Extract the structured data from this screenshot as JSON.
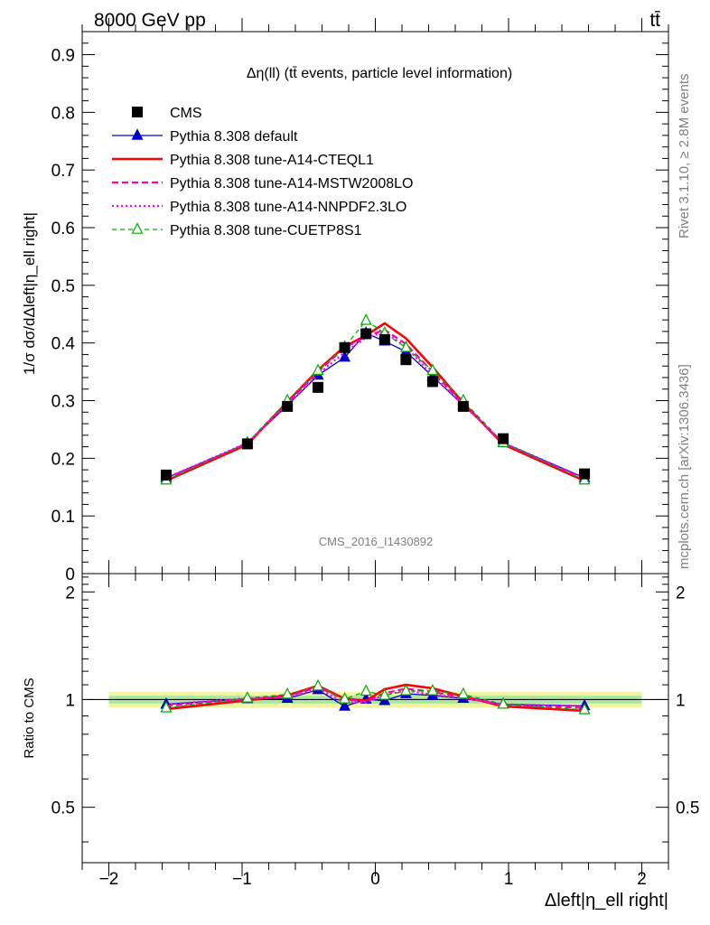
{
  "header": {
    "energy_label": "8000 GeV pp",
    "process_label": "tt̄"
  },
  "side_labels": {
    "rivet": "Rivet 3.1.10, ≥ 2.8M events",
    "source": "mcplots.cern.ch [arXiv:1306.3436]"
  },
  "chart_data": [
    {
      "type": "line",
      "title": "Δη(ll) (tt̄ events, particle level information)",
      "watermark": "CMS_2016_I1430892",
      "xlabel": "Δleft|η_ell right|",
      "ylabel": "1/σ dσ/dΔleft|η_ell right|",
      "xlim": [
        -2.2,
        2.2
      ],
      "ylim": [
        0,
        0.94
      ],
      "y_ticks": [
        0,
        0.1,
        0.2,
        0.3,
        0.4,
        0.5,
        0.6,
        0.7,
        0.8,
        0.9
      ],
      "y_tick_labels": [
        "0",
        "0.1",
        "0.2",
        "0.3",
        "0.4",
        "0.5",
        "0.6",
        "0.7",
        "0.8",
        "0.9"
      ],
      "x_ticks": [
        -2,
        -1,
        0,
        1,
        2
      ],
      "x_tick_labels": [
        "−2",
        "−1",
        "0",
        "1",
        "2"
      ],
      "legend_position": "top-left",
      "x": [
        -1.57,
        -0.96,
        -0.66,
        -0.43,
        -0.23,
        -0.07,
        0.07,
        0.23,
        0.43,
        0.66,
        0.96,
        1.57
      ],
      "series": [
        {
          "name": "CMS",
          "color": "#000000",
          "marker": "square",
          "values": [
            0.171,
            0.225,
            0.29,
            0.323,
            0.392,
            0.416,
            0.406,
            0.371,
            0.333,
            0.29,
            0.234,
            0.173
          ]
        },
        {
          "name": "Pythia 8.308 default",
          "color": "#0000cc",
          "marker": "triangle-filled",
          "dash": "",
          "values": [
            0.166,
            0.226,
            0.292,
            0.344,
            0.375,
            0.417,
            0.403,
            0.385,
            0.342,
            0.292,
            0.227,
            0.166
          ]
        },
        {
          "name": "Pythia 8.308 tune-A14-CTEQL1",
          "color": "#ff0000",
          "marker": "none",
          "dash": "",
          "width": 2.6,
          "values": [
            0.161,
            0.224,
            0.298,
            0.353,
            0.394,
            0.413,
            0.434,
            0.408,
            0.358,
            0.296,
            0.224,
            0.161
          ]
        },
        {
          "name": "Pythia 8.308 tune-A14-MSTW2008LO",
          "color": "#ff00aa",
          "marker": "none",
          "dash": "7,4",
          "width": 2.2,
          "values": [
            0.164,
            0.226,
            0.296,
            0.35,
            0.392,
            0.411,
            0.423,
            0.398,
            0.35,
            0.294,
            0.226,
            0.164
          ]
        },
        {
          "name": "Pythia 8.308 tune-A14-NNPDF2.3LO",
          "color": "#ff00ff",
          "marker": "none",
          "dash": "2,3",
          "width": 2.2,
          "values": [
            0.166,
            0.227,
            0.294,
            0.346,
            0.384,
            0.409,
            0.419,
            0.393,
            0.344,
            0.293,
            0.227,
            0.166
          ]
        },
        {
          "name": "Pythia 8.308 tune-CUETP8S1",
          "color": "#00aa00",
          "marker": "triangle-open",
          "dash": "5,4",
          "values": [
            0.162,
            0.227,
            0.3,
            0.352,
            0.393,
            0.439,
            0.417,
            0.392,
            0.352,
            0.3,
            0.227,
            0.162
          ]
        }
      ]
    },
    {
      "type": "line",
      "title": "",
      "xlabel": "Δleft|η_ell right|",
      "ylabel": "Ratio to CMS",
      "xlim": [
        -2.2,
        2.2
      ],
      "ylim": [
        0.35,
        2.25
      ],
      "y_scale": "log",
      "y_ticks": [
        0.5,
        1,
        2
      ],
      "y_tick_labels": [
        "0.5",
        "1",
        "2"
      ],
      "band_inner": [
        0.975,
        1.025
      ],
      "band_outer": [
        0.95,
        1.05
      ],
      "x": [
        -1.57,
        -0.96,
        -0.66,
        -0.43,
        -0.23,
        -0.07,
        0.07,
        0.23,
        0.43,
        0.66,
        0.96,
        1.57
      ],
      "series": [
        {
          "name": "Pythia 8.308 default",
          "values": [
            0.97,
            1.005,
            1.007,
            1.065,
            0.957,
            1.002,
            0.993,
            1.038,
            1.027,
            1.007,
            0.97,
            0.96
          ]
        },
        {
          "name": "Pythia 8.308 tune-A14-CTEQL1",
          "values": [
            0.94,
            0.995,
            1.028,
            1.093,
            1.005,
            0.993,
            1.069,
            1.1,
            1.075,
            1.021,
            0.957,
            0.93
          ]
        },
        {
          "name": "Pythia 8.308 tune-A14-MSTW2008LO",
          "values": [
            0.96,
            1.005,
            1.021,
            1.084,
            1.0,
            0.988,
            1.042,
            1.073,
            1.051,
            1.014,
            0.966,
            0.948
          ]
        },
        {
          "name": "Pythia 8.308 tune-A14-NNPDF2.3LO",
          "values": [
            0.97,
            1.009,
            1.014,
            1.071,
            0.98,
            0.983,
            1.032,
            1.059,
            1.033,
            1.01,
            0.97,
            0.96
          ]
        },
        {
          "name": "Pythia 8.308 tune-CUETP8S1",
          "values": [
            0.947,
            1.009,
            1.034,
            1.09,
            1.003,
            1.055,
            1.027,
            1.057,
            1.057,
            1.034,
            0.97,
            0.936
          ]
        }
      ]
    }
  ]
}
